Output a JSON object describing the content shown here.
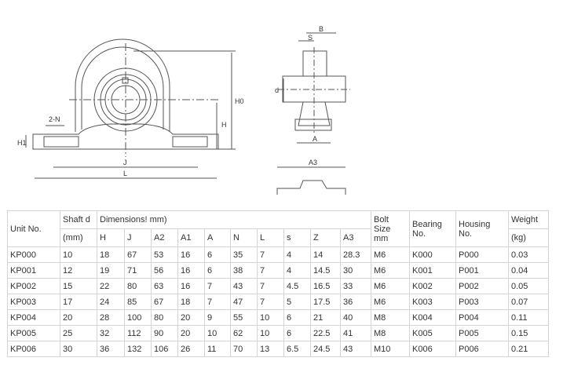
{
  "drawing_labels": {
    "two_n": "2-N",
    "h1": "H1",
    "j": "J",
    "l": "L",
    "h": "H",
    "h0": "H0",
    "b": "B",
    "s": "S",
    "d": "d",
    "a": "A",
    "a3": "A3"
  },
  "table": {
    "unit_no": "Unit  No.",
    "shaft_d": "Shaft d",
    "shaft_unit": "(mm)",
    "dimensions": "Dimensions!  mm)",
    "dim_cols": [
      "H",
      "J",
      "A2",
      "A1",
      "A",
      "N",
      "L",
      "s",
      "Z",
      "A3"
    ],
    "bolt": "Bolt Size mm",
    "bearing": "Bearing No.",
    "housing": "Housing No.",
    "weight": "Weight",
    "weight_unit": "(kg)",
    "rows": [
      [
        "KP000",
        "10",
        "18",
        "67",
        "53",
        "16",
        "6",
        "35",
        "7",
        "4",
        "14",
        "28.3",
        "M6",
        "K000",
        "P000",
        "0.03"
      ],
      [
        "KP001",
        "12",
        "19",
        "71",
        "56",
        "16",
        "6",
        "38",
        "7",
        "4",
        "14.5",
        "30",
        "M6",
        "K001",
        "P001",
        "0.04"
      ],
      [
        "KP002",
        "15",
        "22",
        "80",
        "63",
        "16",
        "7",
        "43",
        "7",
        "4.5",
        "16.5",
        "33",
        "M6",
        "K002",
        "P002",
        "0.05"
      ],
      [
        "KP003",
        "17",
        "24",
        "85",
        "67",
        "18",
        "7",
        "47",
        "7",
        "5",
        "17.5",
        "36",
        "M6",
        "K003",
        "P003",
        "0.07"
      ],
      [
        "KP004",
        "20",
        "28",
        "100",
        "80",
        "20",
        "9",
        "55",
        "10",
        "6",
        "21",
        "40",
        "M8",
        "K004",
        "P004",
        "0.11"
      ],
      [
        "KP005",
        "25",
        "32",
        "112",
        "90",
        "20",
        "10",
        "62",
        "10",
        "6",
        "22.5",
        "41",
        "M8",
        "K005",
        "P005",
        "0.15"
      ],
      [
        "KP006",
        "30",
        "36",
        "132",
        "106",
        "26",
        "11",
        "70",
        "13",
        "6.5",
        "24.5",
        "43",
        "M10",
        "K006",
        "P006",
        "0.21"
      ]
    ]
  }
}
